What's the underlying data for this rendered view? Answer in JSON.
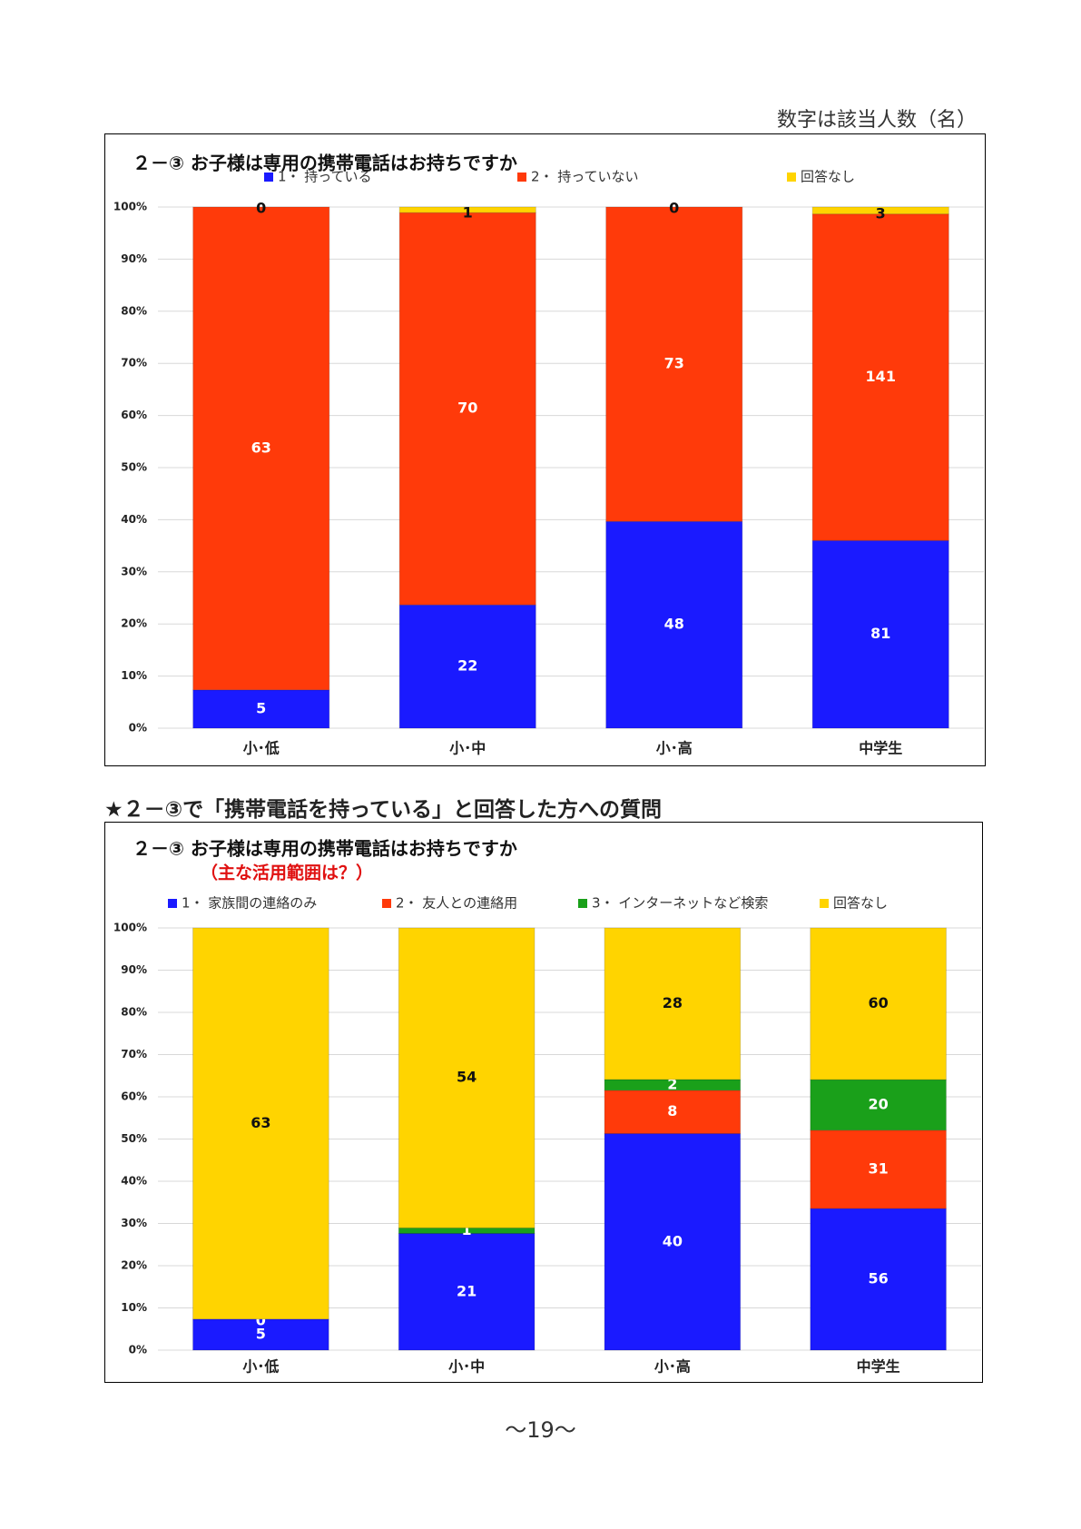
{
  "header_note": "数字は該当人数（名）",
  "section_heading": "★２－③で「携帯電話を持っている」と回答した方への質問",
  "page_number": "〜19〜",
  "chart_data": [
    {
      "type": "bar",
      "stacking": "percent",
      "title": "２－③ お子様は専用の携帯電話はお持ちですか",
      "categories": [
        "小･低",
        "小･中",
        "小･高",
        "中学生"
      ],
      "series": [
        {
          "name": "1・ 持っている",
          "color": "#1a1aff",
          "values": [
            5,
            22,
            48,
            81
          ]
        },
        {
          "name": "2・ 持っていない",
          "color": "#ff3a0a",
          "values": [
            63,
            70,
            73,
            141
          ]
        },
        {
          "name": "回答なし",
          "color": "#ffd400",
          "values": [
            0,
            1,
            0,
            3
          ]
        }
      ],
      "ylim": [
        0,
        100
      ],
      "yticks": [
        {
          "value": 0,
          "label": "0%"
        },
        {
          "value": 10,
          "label": "10%"
        },
        {
          "value": 20,
          "label": "20%"
        },
        {
          "value": 30,
          "label": "30%"
        },
        {
          "value": 40,
          "label": "40%"
        },
        {
          "value": 50,
          "label": "50%"
        },
        {
          "value": 60,
          "label": "60%"
        },
        {
          "value": 70,
          "label": "70%"
        },
        {
          "value": 80,
          "label": "80%"
        },
        {
          "value": 90,
          "label": "90%"
        },
        {
          "value": 100,
          "label": "100%"
        }
      ],
      "grid": true
    },
    {
      "type": "bar",
      "stacking": "percent",
      "title": "２－③ お子様は専用の携帯電話はお持ちですか",
      "subtitle": "（主な活用範囲は？）",
      "categories": [
        "小･低",
        "小･中",
        "小･高",
        "中学生"
      ],
      "series": [
        {
          "name": "1・ 家族間の連絡のみ",
          "color": "#1a1aff",
          "values": [
            5,
            21,
            40,
            56
          ]
        },
        {
          "name": "2・ 友人との連絡用",
          "color": "#ff3a0a",
          "values": [
            0,
            null,
            8,
            31
          ]
        },
        {
          "name": "3・ インターネットなど検索",
          "color": "#1aa01a",
          "values": [
            null,
            1,
            2,
            20
          ]
        },
        {
          "name": "回答なし",
          "color": "#ffd400",
          "values": [
            63,
            54,
            28,
            60
          ]
        }
      ],
      "ylim": [
        0,
        100
      ],
      "yticks": [
        {
          "value": 0,
          "label": "0%"
        },
        {
          "value": 10,
          "label": "10%"
        },
        {
          "value": 20,
          "label": "20%"
        },
        {
          "value": 30,
          "label": "30%"
        },
        {
          "value": 40,
          "label": "40%"
        },
        {
          "value": 50,
          "label": "50%"
        },
        {
          "value": 60,
          "label": "60%"
        },
        {
          "value": 70,
          "label": "70%"
        },
        {
          "value": 80,
          "label": "80%"
        },
        {
          "value": 90,
          "label": "90%"
        },
        {
          "value": 100,
          "label": "100%"
        }
      ],
      "grid": true
    }
  ]
}
